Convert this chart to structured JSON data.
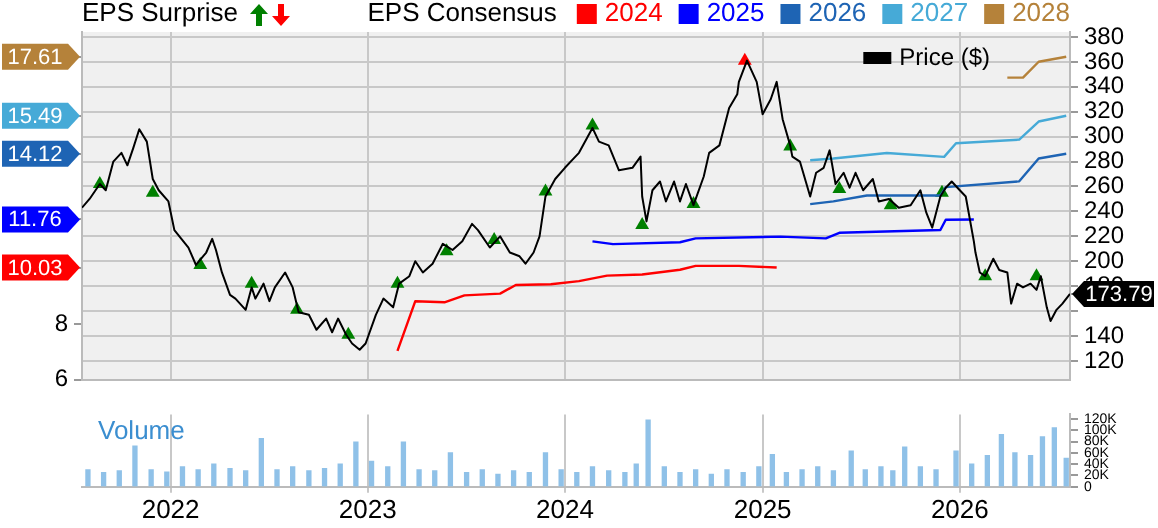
{
  "chart_data": [
    {
      "type": "line",
      "annotations": [
        "EPS Surprise",
        "EPS Consensus"
      ],
      "legend": "top",
      "grid": true,
      "tick_labels": "y",
      "xlim": [
        "2021-07-21",
        "2026-07-24"
      ],
      "xticks": [
        "2022",
        "2023",
        "2024",
        "2025",
        "2026"
      ],
      "ylim": [
        6,
        18.5
      ],
      "yticks": [
        6,
        8,
        10.03,
        11.76,
        14.12,
        15.49,
        17.61
      ],
      "y2lim": [
        105,
        384
      ],
      "y2ticks": [
        120,
        140,
        {
          "value": 160,
          "label": null
        },
        173.79,
        180,
        200,
        220,
        240,
        260,
        280,
        300,
        320,
        340,
        360,
        380
      ],
      "series": [
        {
          "name": "Price ($)",
          "axis": "y2",
          "color": "#000000",
          "x": [
            "2021-07-21",
            "2021-08-04",
            "2021-08-23",
            "2021-09-03",
            "2021-09-17",
            "2021-10-02",
            "2021-10-13",
            "2021-10-24",
            "2021-11-04",
            "2021-11-18",
            "2021-11-29",
            "2021-12-10",
            "2021-12-28",
            "2022-01-08",
            "2022-02-03",
            "2022-02-17",
            "2022-03-08",
            "2022-03-19",
            "2022-03-26",
            "2022-04-06",
            "2022-04-21",
            "2022-05-01",
            "2022-05-20",
            "2022-05-31",
            "2022-06-07",
            "2022-06-22",
            "2022-07-03",
            "2022-07-13",
            "2022-08-01",
            "2022-08-15",
            "2022-08-26",
            "2022-09-14",
            "2022-09-28",
            "2022-10-16",
            "2022-10-27",
            "2022-11-07",
            "2022-11-22",
            "2022-12-03",
            "2022-12-17",
            "2022-12-28",
            "2023-01-16",
            "2023-01-30",
            "2023-02-17",
            "2023-02-28",
            "2023-03-19",
            "2023-03-30",
            "2023-04-13",
            "2023-05-01",
            "2023-05-20",
            "2023-06-07",
            "2023-06-25",
            "2023-07-13",
            "2023-07-24",
            "2023-08-15",
            "2023-09-03",
            "2023-09-21",
            "2023-10-09",
            "2023-10-20",
            "2023-11-04",
            "2023-11-15",
            "2023-11-26",
            "2023-12-14",
            "2024-01-01",
            "2024-01-16",
            "2024-01-27",
            "2024-02-21",
            "2024-03-04",
            "2024-03-22",
            "2024-04-10",
            "2024-05-05",
            "2024-05-20",
            "2024-05-23",
            "2024-05-31",
            "2024-06-11",
            "2024-06-25",
            "2024-07-06",
            "2024-07-21",
            "2024-08-01",
            "2024-08-12",
            "2024-08-26",
            "2024-09-14",
            "2024-09-24",
            "2024-10-13",
            "2024-10-31",
            "2024-11-15",
            "2024-11-18",
            "2024-12-03",
            "2024-12-21",
            "2025-01-01",
            "2025-01-16",
            "2025-01-27",
            "2025-02-07",
            "2025-02-21",
            "2025-02-25",
            "2025-03-11",
            "2025-03-30",
            "2025-04-10",
            "2025-04-24",
            "2025-05-05",
            "2025-05-16",
            "2025-05-31",
            "2025-06-11",
            "2025-06-22",
            "2025-07-06",
            "2025-07-24",
            "2025-08-04",
            "2025-08-23",
            "2025-09-10",
            "2025-10-02",
            "2025-10-20",
            "2025-10-31",
            "2025-11-11",
            "2025-11-26",
            "2025-12-06",
            "2025-12-17",
            "2026-01-01",
            "2026-01-12",
            "2026-01-27",
            "2026-01-30",
            "2026-02-07",
            "2026-02-17",
            "2026-03-04",
            "2026-03-15",
            "2026-03-30",
            "2026-04-06",
            "2026-04-17",
            "2026-04-28",
            "2026-05-12",
            "2026-05-23",
            "2026-05-31",
            "2026-06-11",
            "2026-06-18",
            "2026-06-29",
            "2026-07-10",
            "2026-07-24"
          ],
          "values": [
            243,
            250,
            262,
            257,
            280,
            287,
            277,
            291,
            306,
            296,
            266,
            257,
            248,
            225,
            211,
            197,
            207,
            218,
            209,
            191,
            173,
            170,
            161,
            179,
            170,
            182,
            168,
            179,
            191,
            179,
            159,
            157,
            145,
            154,
            143,
            154,
            141,
            134,
            129,
            134,
            157,
            170,
            163,
            182,
            188,
            200,
            191,
            198,
            214,
            209,
            216,
            230,
            225,
            211,
            220,
            207,
            204,
            198,
            207,
            220,
            252,
            266,
            275,
            282,
            287,
            307,
            296,
            293,
            273,
            275,
            284,
            252,
            232,
            257,
            264,
            248,
            264,
            248,
            262,
            245,
            268,
            287,
            293,
            323,
            334,
            344,
            361,
            344,
            318,
            330,
            344,
            314,
            293,
            284,
            280,
            252,
            271,
            275,
            289,
            262,
            271,
            259,
            271,
            257,
            266,
            248,
            250,
            243,
            245,
            257,
            239,
            227,
            252,
            259,
            264,
            257,
            252,
            216,
            207,
            191,
            188,
            202,
            193,
            191,
            166,
            182,
            179,
            182,
            177,
            188,
            163,
            152,
            161,
            166,
            173.79
          ]
        },
        {
          "name": "2024",
          "color": "#ff0000",
          "x": [
            "2023-02-25",
            "2023-03-30",
            "2023-05-23",
            "2023-06-29",
            "2023-09-03",
            "2023-10-02",
            "2023-12-06",
            "2024-01-27",
            "2024-03-19",
            "2024-05-23",
            "2024-08-01",
            "2024-08-30",
            "2024-11-18",
            "2025-01-27"
          ],
          "values": [
            7.03,
            8.82,
            8.78,
            9.03,
            9.09,
            9.4,
            9.43,
            9.54,
            9.74,
            9.78,
            9.95,
            10.09,
            10.09,
            10.03
          ]
        },
        {
          "name": "2025",
          "color": "#0000ff",
          "x": [
            "2024-02-21",
            "2024-03-30",
            "2024-08-01",
            "2024-08-30",
            "2025-02-03",
            "2025-04-28",
            "2025-05-23",
            "2025-11-26",
            "2025-12-06",
            "2026-01-27"
          ],
          "values": [
            10.97,
            10.87,
            10.94,
            11.08,
            11.14,
            11.08,
            11.28,
            11.38,
            11.75,
            11.76
          ]
        },
        {
          "name": "2026",
          "color": "#1e64b4",
          "x": [
            "2025-03-30",
            "2025-05-12",
            "2025-07-13",
            "2025-11-26",
            "2025-12-06",
            "2026-04-21",
            "2026-05-27",
            "2026-07-17"
          ],
          "values": [
            12.31,
            12.41,
            12.62,
            12.62,
            12.92,
            13.13,
            13.95,
            14.12
          ]
        },
        {
          "name": "2027",
          "color": "#46aad7",
          "x": [
            "2025-03-30",
            "2025-05-12",
            "2025-08-19",
            "2025-12-03",
            "2025-12-25",
            "2026-04-21",
            "2026-05-27",
            "2026-07-17"
          ],
          "values": [
            13.89,
            13.95,
            14.15,
            14.01,
            14.5,
            14.63,
            15.28,
            15.49
          ]
        },
        {
          "name": "2028",
          "color": "#b5823a",
          "x": [
            "2026-03-30",
            "2026-04-28",
            "2026-05-27",
            "2026-07-17"
          ],
          "values": [
            16.86,
            16.86,
            17.43,
            17.61
          ]
        },
        {
          "type": "scatter",
          "axis": "y2",
          "marker": "triangle",
          "color": "#008000",
          "x": [
            "2021-08-23",
            "2021-11-29",
            "2022-02-25",
            "2022-05-31",
            "2022-08-23",
            "2022-11-26",
            "2023-02-25",
            "2023-05-27",
            "2023-08-23",
            "2023-11-26",
            "2024-02-21",
            "2024-05-23",
            "2024-08-26",
            "2025-02-21",
            "2025-05-23",
            "2025-08-26",
            "2025-11-29",
            "2026-02-17",
            "2026-05-23"
          ],
          "values": [
            262,
            255,
            197,
            182,
            161,
            141,
            182,
            208,
            217,
            256,
            309,
            229,
            246,
            292,
            258,
            245,
            255,
            188,
            188
          ]
        },
        {
          "type": "scatter",
          "axis": "y2",
          "marker": "triangle",
          "color": "#ff0000",
          "x": [
            "2024-11-29"
          ],
          "values": [
            361
          ]
        }
      ]
    },
    {
      "type": "bar",
      "title": "Volume",
      "color": "#8fc1e8",
      "grid": "x",
      "xlim": [
        "2021-07-21",
        "2026-07-24"
      ],
      "xticks": [
        "2022",
        "2023",
        "2024",
        "2025",
        "2026"
      ],
      "ylim": [
        0,
        128
      ],
      "yticks": [
        0,
        {
          "value": 20,
          "label": "20K"
        },
        {
          "value": 40,
          "label": "40K"
        },
        {
          "value": 60,
          "label": "60K"
        },
        {
          "value": 80,
          "label": "80K"
        },
        {
          "value": 100,
          "label": "100K"
        },
        {
          "value": 120,
          "label": "120K"
        }
      ],
      "x": [
        "2021-08-01",
        "2021-08-30",
        "2021-09-28",
        "2021-10-27",
        "2021-11-26",
        "2021-12-25",
        "2022-01-23",
        "2022-02-21",
        "2022-03-22",
        "2022-04-21",
        "2022-05-20",
        "2022-06-18",
        "2022-07-17",
        "2022-08-15",
        "2022-09-14",
        "2022-10-13",
        "2022-11-11",
        "2022-12-10",
        "2023-01-08",
        "2023-02-07",
        "2023-03-08",
        "2023-04-06",
        "2023-05-05",
        "2023-06-03",
        "2023-07-03",
        "2023-08-01",
        "2023-08-30",
        "2023-09-28",
        "2023-10-27",
        "2023-11-26",
        "2023-12-25",
        "2024-01-23",
        "2024-02-21",
        "2024-03-22",
        "2024-04-21",
        "2024-05-12",
        "2024-06-03",
        "2024-07-03",
        "2024-08-01",
        "2024-08-30",
        "2024-09-28",
        "2024-10-27",
        "2024-11-26",
        "2024-12-25",
        "2025-01-19",
        "2025-02-14",
        "2025-03-15",
        "2025-04-13",
        "2025-05-12",
        "2025-06-14",
        "2025-07-10",
        "2025-08-08",
        "2025-08-30",
        "2025-09-21",
        "2025-10-20",
        "2025-11-18",
        "2025-12-25",
        "2026-01-23",
        "2026-02-21",
        "2026-03-19",
        "2026-04-13",
        "2026-05-12",
        "2026-06-03",
        "2026-06-25",
        "2026-07-17"
      ],
      "values": [
        30,
        25,
        28,
        72,
        30,
        26,
        35,
        30,
        40,
        32,
        28,
        85,
        30,
        35,
        28,
        32,
        40,
        79,
        45,
        35,
        79,
        30,
        28,
        60,
        25,
        30,
        22,
        28,
        25,
        60,
        30,
        25,
        35,
        28,
        25,
        40,
        118,
        35,
        25,
        30,
        22,
        30,
        25,
        35,
        57,
        25,
        30,
        35,
        28,
        63,
        30,
        35,
        28,
        70,
        35,
        30,
        63,
        40,
        55,
        92,
        60,
        55,
        88,
        104,
        50
      ]
    }
  ]
}
